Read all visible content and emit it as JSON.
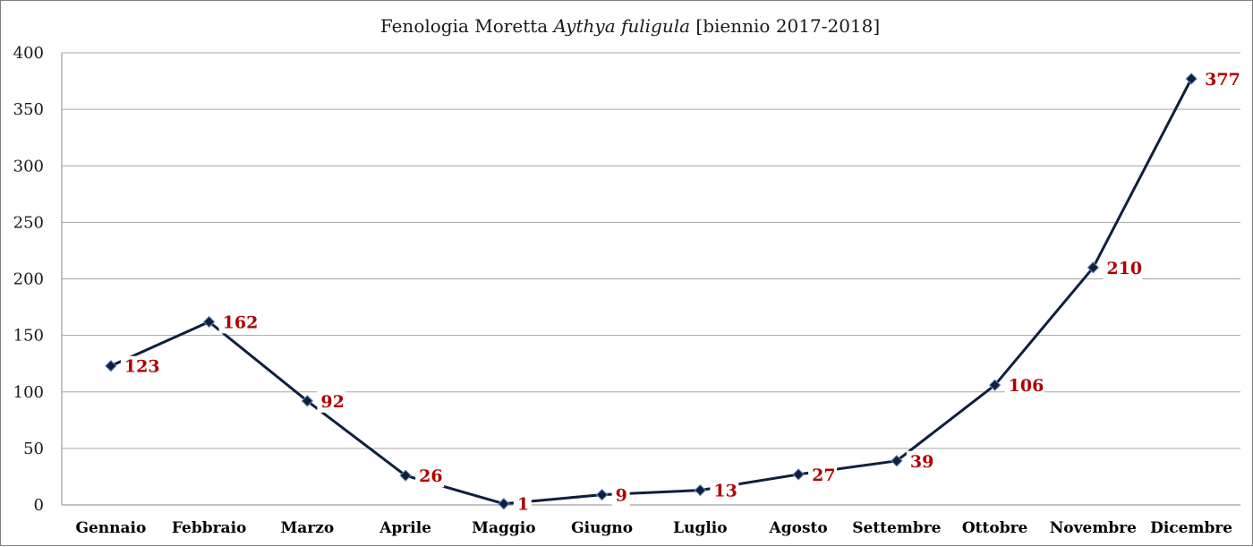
{
  "chart_data": {
    "type": "line",
    "title_main": "Fenologia Moretta ",
    "title_species": "Aythya fuligula",
    "title_period": " [biennio 2017-2018]",
    "categories": [
      "Gennaio",
      "Febbraio",
      "Marzo",
      "Aprile",
      "Maggio",
      "Giugno",
      "Luglio",
      "Agosto",
      "Settembre",
      "Ottobre",
      "Novembre",
      "Dicembre"
    ],
    "series": [
      {
        "values": [
          123,
          162,
          92,
          26,
          1,
          9,
          13,
          27,
          39,
          106,
          210,
          377
        ]
      }
    ],
    "ylim": [
      0,
      400
    ],
    "yticks": [
      0,
      50,
      100,
      150,
      200,
      250,
      300,
      350,
      400
    ],
    "grid": true,
    "legend": "none",
    "colors": {
      "line": "#0f1f3d",
      "marker": "#0f1f3d",
      "marker_highlight": "#5f8bc4",
      "data_label": "#b00000",
      "gridline": "#a6a6a6",
      "axis": "#888888"
    }
  }
}
